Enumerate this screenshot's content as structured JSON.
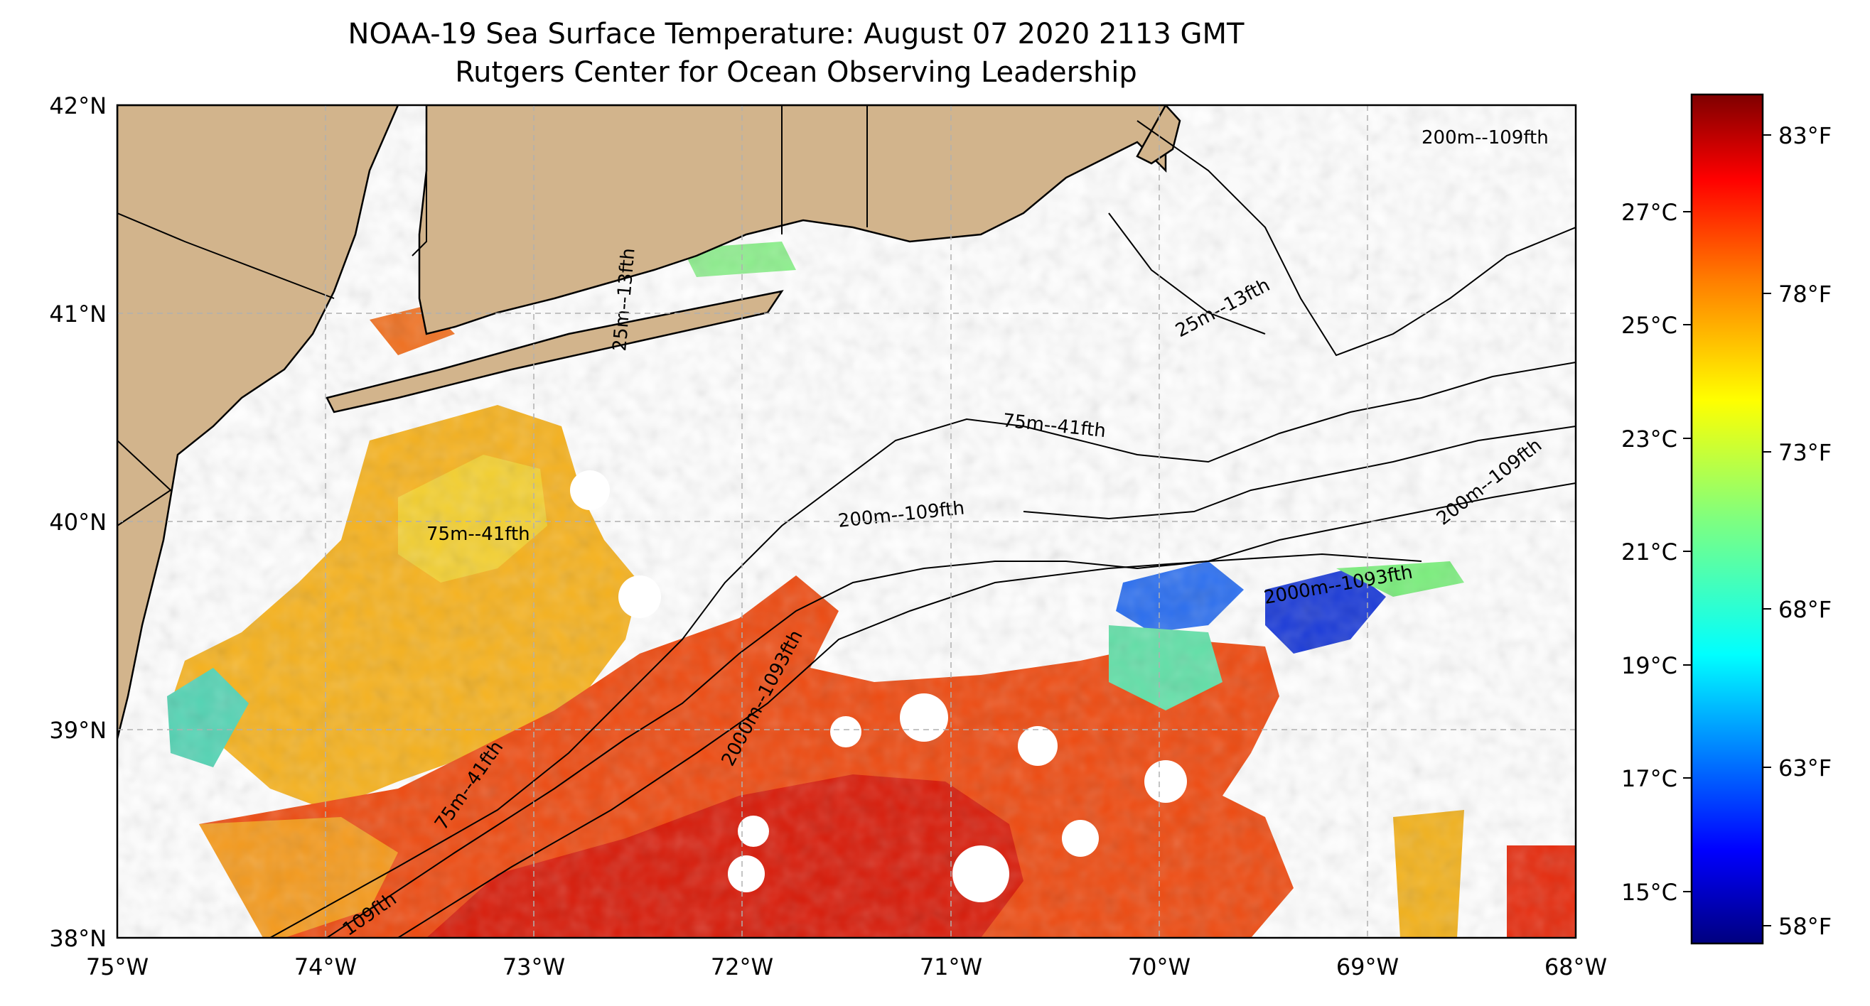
{
  "title": "NOAA-19 Sea Surface Temperature: August 07 2020 2113 GMT",
  "subtitle": "Rutgers Center for Ocean Observing Leadership",
  "lat_labels": [
    "42°N",
    "41°N",
    "40°N",
    "39°N",
    "38°N"
  ],
  "lon_labels": [
    "75°W",
    "74°W",
    "73°W",
    "72°W",
    "71°W",
    "70°W",
    "69°W",
    "68°W"
  ],
  "colorbar": {
    "celsius_labels": [
      "27°C",
      "25°C",
      "23°C",
      "21°C",
      "19°C",
      "17°C",
      "15°C"
    ],
    "fahrenheit_labels": [
      "83°F",
      "78°F",
      "73°F",
      "68°F",
      "63°F",
      "58°F"
    ],
    "colormap": [
      "#00007f",
      "#0000ff",
      "#007fff",
      "#00ffff",
      "#7fff7f",
      "#ffff00",
      "#ff7f00",
      "#ff0000",
      "#7f0000"
    ]
  },
  "isobaths": [
    "200m--109fth",
    "75m--41fth",
    "200m--109fth",
    "200m--109fth",
    "2000m--1093fth",
    "75m--41fth",
    "2000m--1093fth",
    "75m--41fth",
    "25m--13fth",
    "25m--13fth",
    "109fth"
  ],
  "colors": {
    "land": "#d2b48c",
    "grid": "#b0b0b0"
  }
}
